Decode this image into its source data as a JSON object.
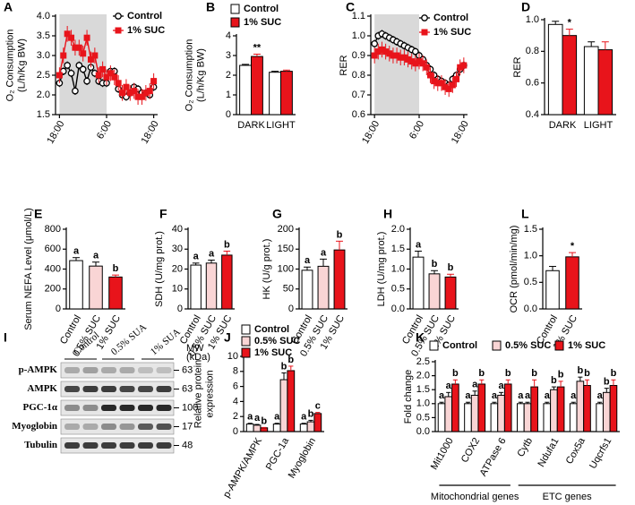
{
  "chart_data": [
    {
      "type": "line",
      "panel": "A",
      "ylabel": [
        "O₂ Consumption",
        "(L/h/Kg BW)"
      ],
      "x": [
        0,
        1,
        2,
        3,
        4,
        5,
        6,
        7,
        8,
        9,
        10,
        11,
        12,
        13,
        14,
        15,
        16,
        17,
        18,
        19,
        20,
        21,
        22,
        23,
        24
      ],
      "xlim": [
        -1,
        25
      ],
      "xticks": [
        {
          "value": 0,
          "label": "18:00"
        },
        {
          "value": 12,
          "label": "6:00"
        },
        {
          "value": 24,
          "label": "18:00"
        }
      ],
      "ylim": [
        1.5,
        4.0
      ],
      "yticks": [
        {
          "value": 1.5,
          "label": "1.5"
        },
        {
          "value": 2.0,
          "label": "2.0"
        },
        {
          "value": 2.5,
          "label": "2.5"
        },
        {
          "value": 3.0,
          "label": "3.0"
        },
        {
          "value": 3.5,
          "label": "3.5"
        },
        {
          "value": 4.0,
          "label": "4.0"
        }
      ],
      "dark_period": [
        0,
        12
      ],
      "legend": "top-right",
      "series": [
        {
          "name": "Control",
          "color": "#000000",
          "marker": "o",
          "values": [
            2.3,
            2.6,
            2.75,
            2.55,
            2.1,
            2.75,
            2.65,
            2.35,
            2.7,
            2.55,
            2.35,
            2.3,
            2.3,
            2.6,
            2.6,
            2.15,
            2.0,
            1.95,
            2.05,
            2.2,
            2.15,
            2.05,
            2.05,
            2.0,
            2.2
          ],
          "errors": [
            0.1,
            0.1,
            0.1,
            0.1,
            0.1,
            0.1,
            0.1,
            0.1,
            0.1,
            0.1,
            0.1,
            0.1,
            0.1,
            0.1,
            0.1,
            0.1,
            0.1,
            0.1,
            0.1,
            0.1,
            0.1,
            0.1,
            0.1,
            0.1,
            0.1
          ]
        },
        {
          "name": "1% SUC",
          "color": "#e8141b",
          "marker": "s",
          "values": [
            2.5,
            3.0,
            3.55,
            3.45,
            3.2,
            3.2,
            3.05,
            3.45,
            2.9,
            3.0,
            2.5,
            2.65,
            2.45,
            2.55,
            2.45,
            2.3,
            2.05,
            2.2,
            2.05,
            2.1,
            1.95,
            1.95,
            2.05,
            2.1,
            2.35
          ],
          "errors": [
            0.2,
            0.2,
            0.2,
            0.2,
            0.2,
            0.2,
            0.2,
            0.2,
            0.2,
            0.2,
            0.2,
            0.2,
            0.2,
            0.2,
            0.2,
            0.2,
            0.2,
            0.2,
            0.2,
            0.2,
            0.2,
            0.2,
            0.2,
            0.2,
            0.2
          ]
        }
      ]
    },
    {
      "type": "bar",
      "panel": "B",
      "ylabel": [
        "O₂ Consumption",
        "(L/h/Kg BW)"
      ],
      "categories": [
        "DARK",
        "LIGHT"
      ],
      "ylim": [
        0,
        4
      ],
      "yticks": [
        0,
        1,
        2,
        3,
        4
      ],
      "legend": "top-left",
      "series": [
        {
          "name": "Control",
          "color": "#ffffff",
          "values": [
            2.5,
            2.15
          ],
          "errors": [
            0.05,
            0.05
          ],
          "labels": [
            null,
            null
          ]
        },
        {
          "name": "1% SUC",
          "color": "#e8141b",
          "values": [
            2.95,
            2.2
          ],
          "errors": [
            0.12,
            0.06
          ],
          "labels": [
            "**",
            null
          ]
        }
      ]
    },
    {
      "type": "line",
      "panel": "C",
      "ylabel": [
        "RER"
      ],
      "x": [
        0,
        1,
        2,
        3,
        4,
        5,
        6,
        7,
        8,
        9,
        10,
        11,
        12,
        13,
        14,
        15,
        16,
        17,
        18,
        19,
        20,
        21,
        22,
        23,
        24
      ],
      "xlim": [
        -1,
        25
      ],
      "xticks": [
        {
          "value": 0,
          "label": "18:00"
        },
        {
          "value": 12,
          "label": "6:00"
        },
        {
          "value": 24,
          "label": "18:00"
        }
      ],
      "ylim": [
        0.6,
        1.1
      ],
      "yticks": [
        {
          "value": 0.6,
          "label": "0.6"
        },
        {
          "value": 0.7,
          "label": "0.7"
        },
        {
          "value": 0.8,
          "label": "0.8"
        },
        {
          "value": 0.9,
          "label": "0.9"
        },
        {
          "value": 1.0,
          "label": "1.0"
        },
        {
          "value": 1.1,
          "label": "1.1"
        }
      ],
      "dark_period": [
        0,
        12
      ],
      "legend": "top-right",
      "series": [
        {
          "name": "Control",
          "color": "#000000",
          "marker": "o",
          "values": [
            0.96,
            1.0,
            1.01,
            1.0,
            0.99,
            0.98,
            0.97,
            0.96,
            0.95,
            0.94,
            0.93,
            0.92,
            0.9,
            0.88,
            0.85,
            0.83,
            0.8,
            0.78,
            0.77,
            0.76,
            0.75,
            0.78,
            0.8,
            0.83,
            0.85
          ],
          "errors": [
            0.02,
            0.02,
            0.02,
            0.02,
            0.02,
            0.02,
            0.02,
            0.02,
            0.02,
            0.02,
            0.02,
            0.02,
            0.02,
            0.02,
            0.02,
            0.02,
            0.02,
            0.02,
            0.02,
            0.02,
            0.02,
            0.02,
            0.02,
            0.02,
            0.02
          ]
        },
        {
          "name": "1% SUC",
          "color": "#e8141b",
          "marker": "s",
          "values": [
            0.9,
            0.92,
            0.93,
            0.92,
            0.91,
            0.9,
            0.9,
            0.89,
            0.89,
            0.88,
            0.87,
            0.86,
            0.87,
            0.86,
            0.84,
            0.8,
            0.77,
            0.76,
            0.76,
            0.74,
            0.73,
            0.75,
            0.78,
            0.84,
            0.85
          ],
          "errors": [
            0.04,
            0.04,
            0.04,
            0.04,
            0.04,
            0.04,
            0.04,
            0.04,
            0.04,
            0.04,
            0.04,
            0.04,
            0.04,
            0.04,
            0.04,
            0.04,
            0.04,
            0.04,
            0.04,
            0.04,
            0.04,
            0.04,
            0.04,
            0.04,
            0.04
          ]
        }
      ]
    },
    {
      "type": "bar",
      "panel": "D",
      "ylabel": [
        "RER"
      ],
      "categories": [
        "DARK",
        "LIGHT"
      ],
      "ylim": [
        0.4,
        1.0
      ],
      "yticks": [
        {
          "value": 0.4,
          "label": "0.4"
        },
        {
          "value": 0.6,
          "label": "0.6"
        },
        {
          "value": 0.8,
          "label": "0.8"
        },
        {
          "value": 1.0,
          "label": "1.0"
        }
      ],
      "series": [
        {
          "name": "Control",
          "color": "#ffffff",
          "values": [
            0.97,
            0.83
          ],
          "errors": [
            0.02,
            0.03
          ],
          "labels": [
            null,
            null
          ]
        },
        {
          "name": "1% SUC",
          "color": "#e8141b",
          "values": [
            0.9,
            0.81
          ],
          "errors": [
            0.04,
            0.05
          ],
          "labels": [
            "*",
            null
          ]
        }
      ]
    },
    {
      "type": "bar",
      "panel": "E",
      "ylabel": [
        "Serum NEFA Level (μmol/L)"
      ],
      "categories": [
        "Control",
        "0.5% SUC",
        "1% SUC"
      ],
      "ylim": [
        0,
        800
      ],
      "yticks": [
        0,
        200,
        400,
        600,
        800
      ],
      "values": [
        485,
        430,
        320
      ],
      "errors": [
        30,
        40,
        20
      ],
      "colors": [
        "#ffffff",
        "#f9d5d5",
        "#e8141b"
      ],
      "labels": [
        "a",
        "a",
        "b"
      ]
    },
    {
      "type": "bar",
      "panel": "F",
      "ylabel": [
        "SDH (U/mg prot.)"
      ],
      "categories": [
        "Control",
        "0.5% SUC",
        "1% SUC"
      ],
      "ylim": [
        0,
        40
      ],
      "yticks": [
        0,
        10,
        20,
        30,
        40
      ],
      "values": [
        22,
        23,
        27
      ],
      "errors": [
        1,
        1.5,
        2
      ],
      "colors": [
        "#ffffff",
        "#f9d5d5",
        "#e8141b"
      ],
      "labels": [
        "a",
        "a",
        "b"
      ]
    },
    {
      "type": "bar",
      "panel": "G",
      "ylabel": [
        "HK (U/g prot.)"
      ],
      "categories": [
        "Control",
        "0.5% SUC",
        "1% SUC"
      ],
      "ylim": [
        0,
        200
      ],
      "yticks": [
        0,
        50,
        100,
        150,
        200
      ],
      "values": [
        97,
        107,
        148
      ],
      "errors": [
        8,
        18,
        22
      ],
      "colors": [
        "#ffffff",
        "#f9d5d5",
        "#e8141b"
      ],
      "labels": [
        "a",
        "a",
        "b"
      ]
    },
    {
      "type": "bar",
      "panel": "H",
      "ylabel": [
        "LDH (U/mg prot.)"
      ],
      "categories": [
        "Control",
        "0.5% SUC",
        "1% SUC"
      ],
      "ylim": [
        0,
        2.0
      ],
      "yticks": [
        {
          "value": 0,
          "label": "0.0"
        },
        {
          "value": 0.5,
          "label": "0.5"
        },
        {
          "value": 1.0,
          "label": "1.0"
        },
        {
          "value": 1.5,
          "label": "1.5"
        },
        {
          "value": 2.0,
          "label": "2.0"
        }
      ],
      "values": [
        1.3,
        0.88,
        0.8
      ],
      "errors": [
        0.15,
        0.08,
        0.07
      ],
      "colors": [
        "#ffffff",
        "#f9d5d5",
        "#e8141b"
      ],
      "labels": [
        "a",
        "b",
        "b"
      ]
    },
    {
      "type": "bar",
      "panel": "L",
      "ylabel": [
        "OCR (pmol/min/mg)"
      ],
      "categories": [
        "Control",
        "1% SUC"
      ],
      "ylim": [
        0,
        1.5
      ],
      "yticks": [
        {
          "value": 0,
          "label": "0.0"
        },
        {
          "value": 0.5,
          "label": "0.5"
        },
        {
          "value": 1.0,
          "label": "1.0"
        },
        {
          "value": 1.5,
          "label": "1.5"
        }
      ],
      "values": [
        0.72,
        0.98
      ],
      "errors": [
        0.08,
        0.08
      ],
      "colors": [
        "#ffffff",
        "#e8141b"
      ],
      "labels": [
        null,
        "*"
      ]
    },
    {
      "type": "bar",
      "panel": "J",
      "ylabel": [
        "Relative protein",
        "expression"
      ],
      "categories": [
        "p-AMPK/AMPK",
        "PGC-1a",
        "Myoglobin"
      ],
      "ylim": [
        0,
        10
      ],
      "yticks": [
        0,
        2,
        4,
        6,
        8,
        10
      ],
      "legend": "top-left",
      "series": [
        {
          "name": "Control",
          "color": "#ffffff",
          "values": [
            1,
            1,
            1
          ],
          "errors": [
            0.1,
            0.1,
            0.1
          ],
          "labels": [
            "a",
            "a",
            "a"
          ]
        },
        {
          "name": "0.5% SUC",
          "color": "#f9d5d5",
          "values": [
            0.85,
            6.9,
            1.3
          ],
          "errors": [
            0.1,
            0.9,
            0.2
          ],
          "labels": [
            "a",
            "b",
            "b"
          ]
        },
        {
          "name": "1% SUC",
          "color": "#e8141b",
          "values": [
            0.5,
            8.1,
            2.4
          ],
          "errors": [
            0.05,
            0.6,
            0.15
          ],
          "labels": [
            "b",
            "b",
            "c"
          ]
        }
      ]
    },
    {
      "type": "bar",
      "panel": "K",
      "ylabel": [
        "Fold change"
      ],
      "categories": [
        "Mit1000",
        "COX2",
        "ATPase 6",
        "Cytb",
        "Ndufa1",
        "Cox5a",
        "Uqcrfs1"
      ],
      "ylim": [
        0,
        2.5
      ],
      "yticks": [
        {
          "value": 0,
          "label": "0.0"
        },
        {
          "value": 0.5,
          "label": "0.5"
        },
        {
          "value": 1.0,
          "label": "1.0"
        },
        {
          "value": 1.5,
          "label": "1.5"
        },
        {
          "value": 2.0,
          "label": "2.0"
        },
        {
          "value": 2.5,
          "label": "2.5"
        }
      ],
      "legend": "top",
      "groups": [
        {
          "label": "Mitochondrial genes",
          "categories": [
            "Mit1000",
            "COX2",
            "ATPase 6"
          ]
        },
        {
          "label": "ETC genes",
          "categories": [
            "Cytb",
            "Ndufa1",
            "Cox5a",
            "Uqcrfs1"
          ]
        }
      ],
      "series": [
        {
          "name": "Control",
          "color": "#ffffff",
          "values": [
            1,
            1,
            1,
            1,
            1,
            1,
            1
          ],
          "errors": [
            0.05,
            0.05,
            0.05,
            0.05,
            0.05,
            0.05,
            0.05
          ],
          "labels": [
            "a",
            "a",
            "a",
            "a",
            "a",
            "a",
            "a"
          ]
        },
        {
          "name": "0.5% SUC",
          "color": "#f9d5d5",
          "values": [
            1.25,
            1.3,
            1.3,
            1.0,
            1.5,
            1.8,
            1.4
          ],
          "errors": [
            0.15,
            0.15,
            0.1,
            0.05,
            0.1,
            0.15,
            0.15
          ],
          "labels": [
            "a",
            "a",
            "a",
            "a",
            "b",
            "b",
            "b"
          ]
        },
        {
          "name": "1% SUC",
          "color": "#e8141b",
          "values": [
            1.7,
            1.7,
            1.7,
            1.6,
            1.6,
            1.65,
            1.65
          ],
          "errors": [
            0.15,
            0.15,
            0.15,
            0.25,
            0.2,
            0.2,
            0.2
          ],
          "labels": [
            "b",
            "b",
            "b",
            "b",
            "b",
            "b",
            "b"
          ]
        }
      ]
    }
  ],
  "blot": {
    "panel": "I",
    "lanes": [
      "Control",
      "0.5% SUA",
      "1% SUA"
    ],
    "mw_title": [
      "MW",
      "(kDa)"
    ],
    "rows": [
      {
        "label": "p-AMPK",
        "mw": 63
      },
      {
        "label": "AMPK",
        "mw": 63
      },
      {
        "label": "PGC-1α",
        "mw": 100
      },
      {
        "label": "Myoglobin",
        "mw": 17
      },
      {
        "label": "Tubulin",
        "mw": 48
      }
    ]
  }
}
